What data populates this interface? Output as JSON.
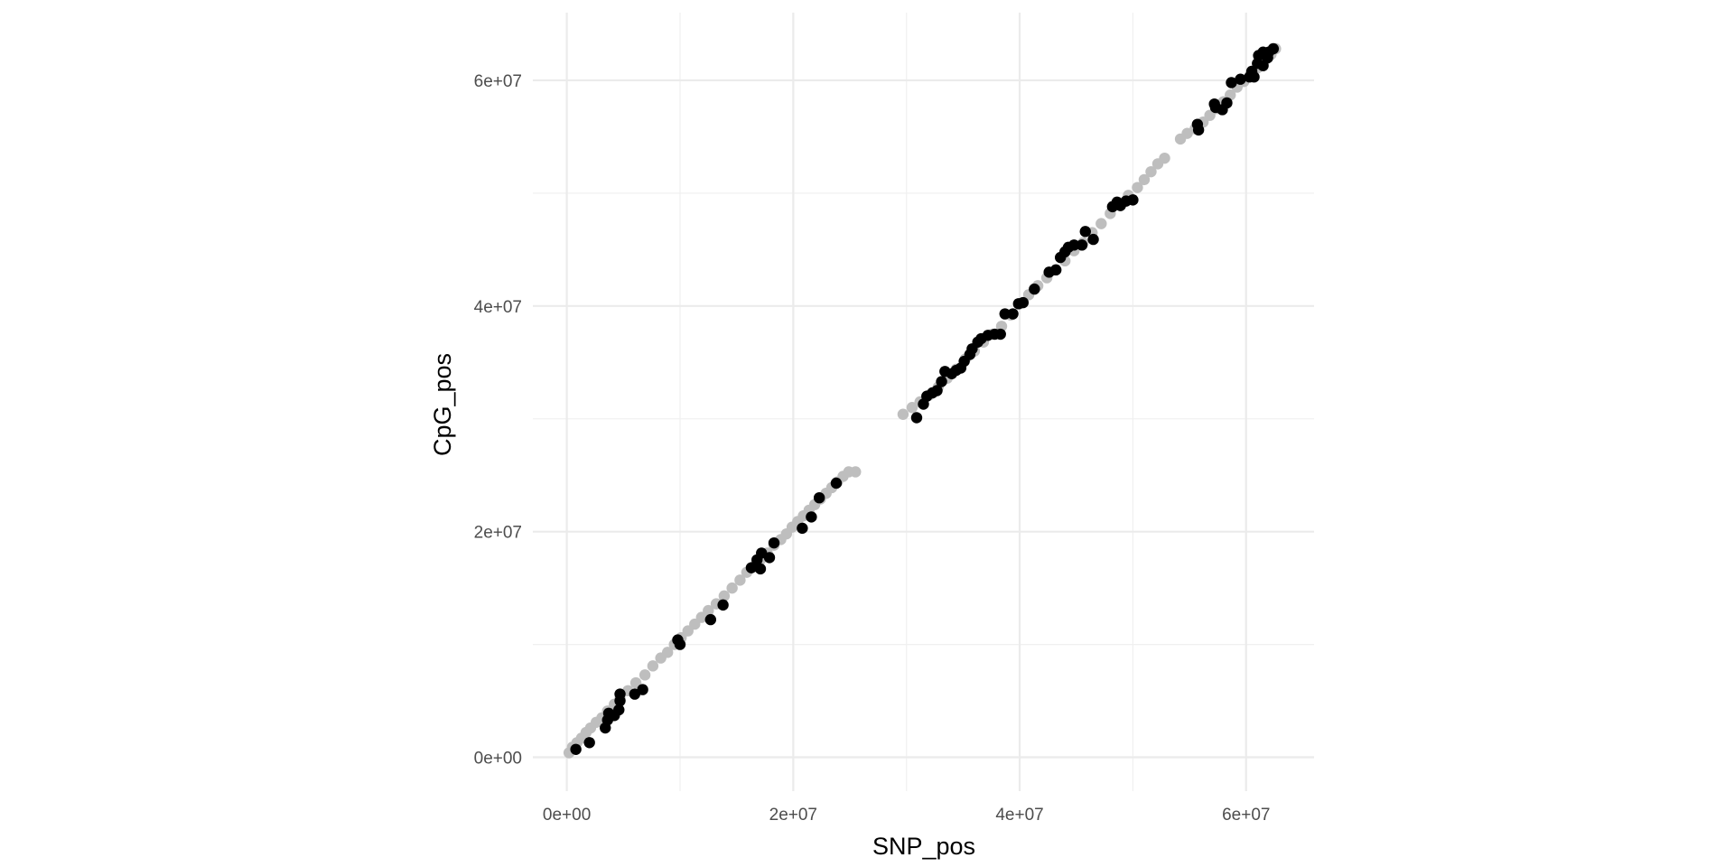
{
  "chart_data": {
    "type": "scatter",
    "title": "",
    "xlabel": "SNP_pos",
    "ylabel": "CpG_pos",
    "xlim": [
      -3000000,
      66000000
    ],
    "ylim": [
      -3000000,
      66000000
    ],
    "grid": true,
    "x_ticks": [
      {
        "value": 0,
        "label": "0e+00"
      },
      {
        "value": 20000000,
        "label": "2e+07"
      },
      {
        "value": 40000000,
        "label": "4e+07"
      },
      {
        "value": 60000000,
        "label": "6e+07"
      }
    ],
    "y_ticks": [
      {
        "value": 0,
        "label": "0e+00"
      },
      {
        "value": 20000000,
        "label": "2e+07"
      },
      {
        "value": 40000000,
        "label": "4e+07"
      },
      {
        "value": 60000000,
        "label": "6e+07"
      }
    ],
    "series": [
      {
        "color": "#bebebe",
        "points": [
          [
            200000,
            400000
          ],
          [
            500000,
            900000
          ],
          [
            900000,
            1300000
          ],
          [
            1300000,
            1700000
          ],
          [
            1700000,
            2200000
          ],
          [
            2100000,
            2600000
          ],
          [
            2600000,
            3100000
          ],
          [
            3100000,
            3500000
          ],
          [
            3600000,
            4100000
          ],
          [
            4200000,
            4700000
          ],
          [
            4700000,
            5200000
          ],
          [
            5400000,
            5900000
          ],
          [
            6100000,
            6600000
          ],
          [
            6900000,
            7300000
          ],
          [
            7600000,
            8100000
          ],
          [
            8300000,
            8800000
          ],
          [
            8900000,
            9300000
          ],
          [
            9500000,
            10000000
          ],
          [
            10100000,
            10600000
          ],
          [
            10700000,
            11200000
          ],
          [
            11300000,
            11800000
          ],
          [
            11900000,
            12400000
          ],
          [
            12500000,
            13000000
          ],
          [
            13200000,
            13600000
          ],
          [
            13900000,
            14300000
          ],
          [
            14600000,
            15000000
          ],
          [
            15300000,
            15700000
          ],
          [
            15900000,
            16400000
          ],
          [
            16500000,
            16900000
          ],
          [
            17100000,
            17500000
          ],
          [
            17700000,
            18100000
          ],
          [
            18300000,
            18800000
          ],
          [
            18900000,
            19300000
          ],
          [
            19400000,
            19800000
          ],
          [
            19900000,
            20400000
          ],
          [
            20400000,
            20900000
          ],
          [
            20900000,
            21400000
          ],
          [
            21400000,
            21900000
          ],
          [
            21900000,
            22400000
          ],
          [
            22400000,
            22900000
          ],
          [
            22900000,
            23400000
          ],
          [
            23400000,
            23900000
          ],
          [
            23900000,
            24400000
          ],
          [
            24400000,
            24900000
          ],
          [
            24900000,
            25300000
          ],
          [
            25500000,
            25300000
          ],
          [
            29700000,
            30400000
          ],
          [
            30500000,
            31000000
          ],
          [
            31200000,
            31500000
          ],
          [
            32000000,
            32100000
          ],
          [
            32800000,
            32800000
          ],
          [
            33600000,
            33600000
          ],
          [
            34400000,
            34400000
          ],
          [
            35200000,
            35300000
          ],
          [
            36000000,
            36000000
          ],
          [
            36800000,
            36800000
          ],
          [
            37600000,
            37500000
          ],
          [
            38400000,
            38200000
          ],
          [
            39200000,
            39200000
          ],
          [
            40000000,
            40200000
          ],
          [
            40800000,
            41000000
          ],
          [
            41600000,
            41800000
          ],
          [
            42400000,
            42500000
          ],
          [
            43200000,
            43200000
          ],
          [
            44000000,
            44000000
          ],
          [
            44800000,
            44900000
          ],
          [
            45600000,
            45600000
          ],
          [
            46400000,
            46500000
          ],
          [
            47200000,
            47300000
          ],
          [
            48000000,
            48200000
          ],
          [
            48800000,
            49100000
          ],
          [
            49600000,
            49800000
          ],
          [
            50400000,
            50500000
          ],
          [
            51000000,
            51200000
          ],
          [
            51600000,
            51900000
          ],
          [
            52200000,
            52600000
          ],
          [
            52800000,
            53100000
          ],
          [
            54200000,
            54800000
          ],
          [
            54800000,
            55300000
          ],
          [
            55500000,
            55700000
          ],
          [
            56200000,
            56300000
          ],
          [
            56800000,
            56900000
          ],
          [
            57400000,
            57500000
          ],
          [
            58000000,
            58100000
          ],
          [
            58600000,
            58700000
          ],
          [
            59200000,
            59400000
          ],
          [
            59800000,
            59900000
          ],
          [
            60400000,
            60500000
          ],
          [
            61000000,
            61100000
          ],
          [
            61600000,
            61700000
          ],
          [
            62200000,
            62300000
          ],
          [
            62600000,
            62800000
          ]
        ]
      },
      {
        "color": "#000000",
        "points": [
          [
            800000,
            700000
          ],
          [
            2000000,
            1300000
          ],
          [
            3400000,
            2600000
          ],
          [
            3600000,
            3300000
          ],
          [
            3700000,
            3900000
          ],
          [
            4200000,
            3700000
          ],
          [
            4600000,
            4200000
          ],
          [
            4700000,
            5000000
          ],
          [
            4700000,
            5600000
          ],
          [
            6000000,
            5600000
          ],
          [
            6700000,
            6000000
          ],
          [
            9800000,
            10400000
          ],
          [
            10000000,
            10000000
          ],
          [
            12700000,
            12200000
          ],
          [
            13800000,
            13500000
          ],
          [
            16300000,
            16800000
          ],
          [
            16800000,
            17500000
          ],
          [
            17100000,
            16700000
          ],
          [
            17200000,
            18100000
          ],
          [
            17900000,
            17700000
          ],
          [
            18300000,
            19000000
          ],
          [
            20800000,
            20300000
          ],
          [
            21600000,
            21300000
          ],
          [
            22300000,
            23000000
          ],
          [
            23800000,
            24300000
          ],
          [
            30900000,
            30100000
          ],
          [
            31500000,
            31300000
          ],
          [
            31800000,
            32000000
          ],
          [
            32300000,
            32300000
          ],
          [
            32700000,
            32500000
          ],
          [
            33100000,
            33300000
          ],
          [
            33400000,
            34200000
          ],
          [
            34000000,
            34000000
          ],
          [
            34400000,
            34300000
          ],
          [
            34800000,
            34500000
          ],
          [
            35100000,
            35100000
          ],
          [
            35600000,
            35700000
          ],
          [
            35800000,
            36200000
          ],
          [
            36300000,
            36800000
          ],
          [
            36600000,
            37100000
          ],
          [
            37200000,
            37400000
          ],
          [
            37800000,
            37500000
          ],
          [
            38300000,
            37500000
          ],
          [
            38700000,
            39300000
          ],
          [
            39400000,
            39300000
          ],
          [
            39900000,
            40200000
          ],
          [
            40300000,
            40300000
          ],
          [
            41300000,
            41500000
          ],
          [
            42600000,
            43000000
          ],
          [
            43200000,
            43200000
          ],
          [
            43600000,
            44300000
          ],
          [
            44000000,
            44800000
          ],
          [
            44300000,
            45200000
          ],
          [
            44800000,
            45400000
          ],
          [
            45500000,
            45400000
          ],
          [
            45800000,
            46600000
          ],
          [
            46500000,
            45900000
          ],
          [
            48200000,
            48800000
          ],
          [
            48600000,
            49200000
          ],
          [
            48900000,
            48900000
          ],
          [
            49400000,
            49300000
          ],
          [
            50000000,
            49400000
          ],
          [
            55700000,
            56100000
          ],
          [
            55800000,
            55600000
          ],
          [
            57200000,
            57900000
          ],
          [
            57300000,
            57600000
          ],
          [
            57900000,
            57400000
          ],
          [
            58300000,
            58000000
          ],
          [
            58700000,
            59800000
          ],
          [
            59500000,
            60100000
          ],
          [
            60300000,
            60300000
          ],
          [
            60500000,
            60800000
          ],
          [
            60700000,
            60300000
          ],
          [
            61000000,
            61500000
          ],
          [
            61100000,
            62200000
          ],
          [
            61500000,
            61300000
          ],
          [
            61500000,
            62500000
          ],
          [
            61900000,
            62000000
          ],
          [
            62000000,
            62500000
          ],
          [
            62400000,
            62800000
          ]
        ]
      }
    ]
  }
}
